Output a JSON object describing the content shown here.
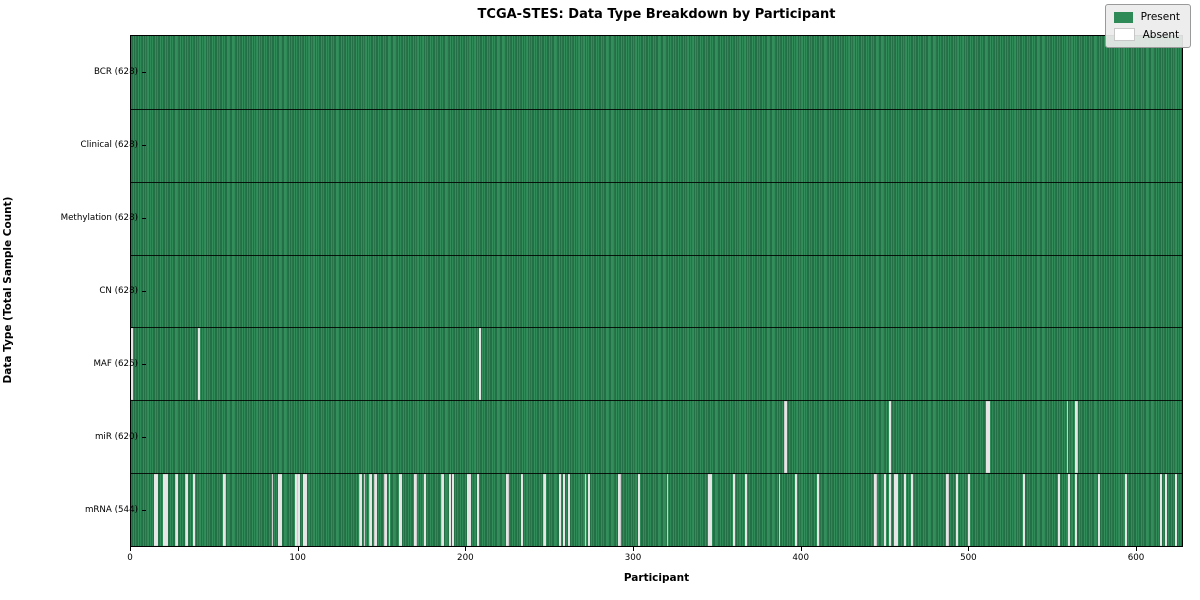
{
  "title": "TCGA-STES: Data Type Breakdown by Participant",
  "chart_data": {
    "type": "heatmap",
    "title": "TCGA-STES: Data Type Breakdown by Participant",
    "xlabel": "Participant",
    "ylabel": "Data Type (Total Sample Count)",
    "n_participants": 628,
    "xlim": [
      0,
      628
    ],
    "x_ticks": [
      0,
      100,
      200,
      300,
      400,
      500,
      600
    ],
    "grid": false,
    "legend_position": "upper right",
    "legend": [
      {
        "label": "Present",
        "color": "#2e8b57"
      },
      {
        "label": "Absent",
        "color": "#ffffff"
      }
    ],
    "colors": {
      "present": "#2e8b57",
      "present_edge": "#15412a",
      "absent": "#ffffff",
      "row_divider": "#000000",
      "frame": "#000000",
      "legend_bg": "#ebebeb"
    },
    "rows": [
      {
        "label": "BCR (628)",
        "name": "BCR",
        "present_count": 628,
        "absent_participants": []
      },
      {
        "label": "Clinical (628)",
        "name": "Clinical",
        "present_count": 628,
        "absent_participants": []
      },
      {
        "label": "Methylation (628)",
        "name": "Methylation",
        "present_count": 628,
        "absent_participants": []
      },
      {
        "label": "CN (628)",
        "name": "CN",
        "present_count": 628,
        "absent_participants": []
      },
      {
        "label": "MAF (625)",
        "name": "MAF",
        "present_count": 625,
        "absent_participants": [
          0,
          40,
          208
        ]
      },
      {
        "label": "miR (620)",
        "name": "miR",
        "present_count": 620,
        "absent_participants": [
          390,
          391,
          453,
          511,
          512,
          559,
          564,
          565
        ]
      },
      {
        "label": "mRNA (544)",
        "name": "mRNA",
        "present_count": 544,
        "absent_participants": [
          14,
          15,
          19,
          20,
          21,
          26,
          27,
          32,
          33,
          37,
          55,
          56,
          84,
          88,
          89,
          98,
          99,
          100,
          103,
          104,
          136,
          137,
          139,
          142,
          143,
          145,
          146,
          151,
          152,
          154,
          160,
          161,
          169,
          170,
          175,
          185,
          186,
          190,
          192,
          201,
          202,
          207,
          224,
          225,
          233,
          246,
          247,
          256,
          258,
          261,
          271,
          273,
          291,
          292,
          303,
          320,
          345,
          346,
          360,
          367,
          387,
          397,
          410,
          444,
          445,
          450,
          453,
          456,
          457,
          462,
          466,
          487,
          488,
          493,
          500,
          533,
          554,
          560,
          564,
          578,
          594,
          615,
          618,
          624
        ]
      }
    ]
  }
}
